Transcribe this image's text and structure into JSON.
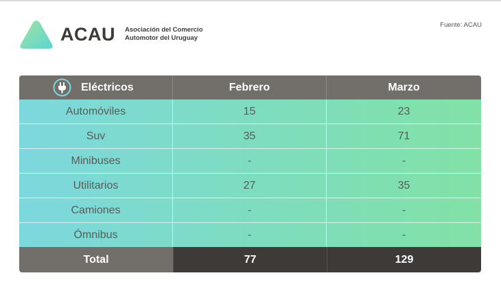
{
  "brand": {
    "name": "ACAU",
    "tagline_line1": "Asociación del Comercio",
    "tagline_line2": "Automotor del Uruguay",
    "colors": {
      "logo_gradient_start": "#a6e2a0",
      "logo_gradient_end": "#58d6d2",
      "dark": "#3e3a37"
    }
  },
  "source": "Fuente: ACAU",
  "table": {
    "header_icon": "plug-icon",
    "columns": [
      "Eléctricos",
      "Febrero",
      "Marzo"
    ],
    "rows": [
      {
        "label": "Automóviles",
        "febrero": "15",
        "marzo": "23"
      },
      {
        "label": "Suv",
        "febrero": "35",
        "marzo": "71"
      },
      {
        "label": "Minibuses",
        "febrero": "-",
        "marzo": "-"
      },
      {
        "label": "Utilitarios",
        "febrero": "27",
        "marzo": "35"
      },
      {
        "label": "Camiones",
        "febrero": "-",
        "marzo": "-"
      },
      {
        "label": "Ómnibus",
        "febrero": "-",
        "marzo": "-"
      }
    ],
    "total": {
      "label": "Total",
      "febrero": "77",
      "marzo": "129"
    },
    "colors": {
      "header_bg": "#726e6a",
      "total_value_bg": "#3e3a37",
      "body_gradient_start": "#7dd8de",
      "body_gradient_end": "#82e1a6"
    }
  }
}
